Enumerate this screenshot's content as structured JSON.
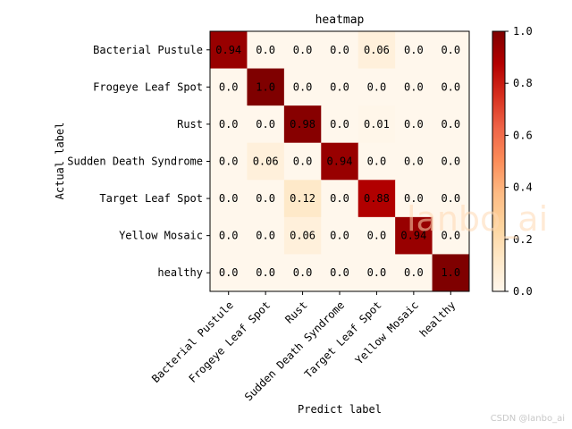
{
  "chart_data": {
    "type": "heatmap",
    "title": "heatmap",
    "xlabel": "Predict label",
    "ylabel": "Actual label",
    "labels": [
      "Bacterial Pustule",
      "Frogeye Leaf Spot",
      "Rust",
      "Sudden Death Syndrome",
      "Target Leaf Spot",
      "Yellow Mosaic",
      "healthy"
    ],
    "values": [
      [
        0.94,
        0.0,
        0.0,
        0.0,
        0.06,
        0.0,
        0.0
      ],
      [
        0.0,
        1.0,
        0.0,
        0.0,
        0.0,
        0.0,
        0.0
      ],
      [
        0.0,
        0.0,
        0.98,
        0.0,
        0.01,
        0.0,
        0.0
      ],
      [
        0.0,
        0.06,
        0.0,
        0.94,
        0.0,
        0.0,
        0.0
      ],
      [
        0.0,
        0.0,
        0.12,
        0.0,
        0.88,
        0.0,
        0.0
      ],
      [
        0.0,
        0.0,
        0.06,
        0.0,
        0.0,
        0.94,
        0.0
      ],
      [
        0.0,
        0.0,
        0.0,
        0.0,
        0.0,
        0.0,
        1.0
      ]
    ],
    "cell_text": [
      [
        "0.94",
        "0.0",
        "0.0",
        "0.0",
        "0.06",
        "0.0",
        "0.0"
      ],
      [
        "0.0",
        "1.0",
        "0.0",
        "0.0",
        "0.0",
        "0.0",
        "0.0"
      ],
      [
        "0.0",
        "0.0",
        "0.98",
        "0.0",
        "0.01",
        "0.0",
        "0.0"
      ],
      [
        "0.0",
        "0.06",
        "0.0",
        "0.94",
        "0.0",
        "0.0",
        "0.0"
      ],
      [
        "0.0",
        "0.0",
        "0.12",
        "0.0",
        "0.88",
        "0.0",
        "0.0"
      ],
      [
        "0.0",
        "0.0",
        "0.06",
        "0.0",
        "0.0",
        "0.94",
        "0.0"
      ],
      [
        "0.0",
        "0.0",
        "0.0",
        "0.0",
        "0.0",
        "0.0",
        "1.0"
      ]
    ],
    "colorbar": {
      "range": [
        0.0,
        1.0
      ],
      "ticks": [
        "0.0",
        "0.2",
        "0.4",
        "0.6",
        "0.8",
        "1.0"
      ],
      "colormap": "OrRd"
    }
  },
  "watermark": "lanbo_ai",
  "footer": "CSDN @lanbo_ai"
}
